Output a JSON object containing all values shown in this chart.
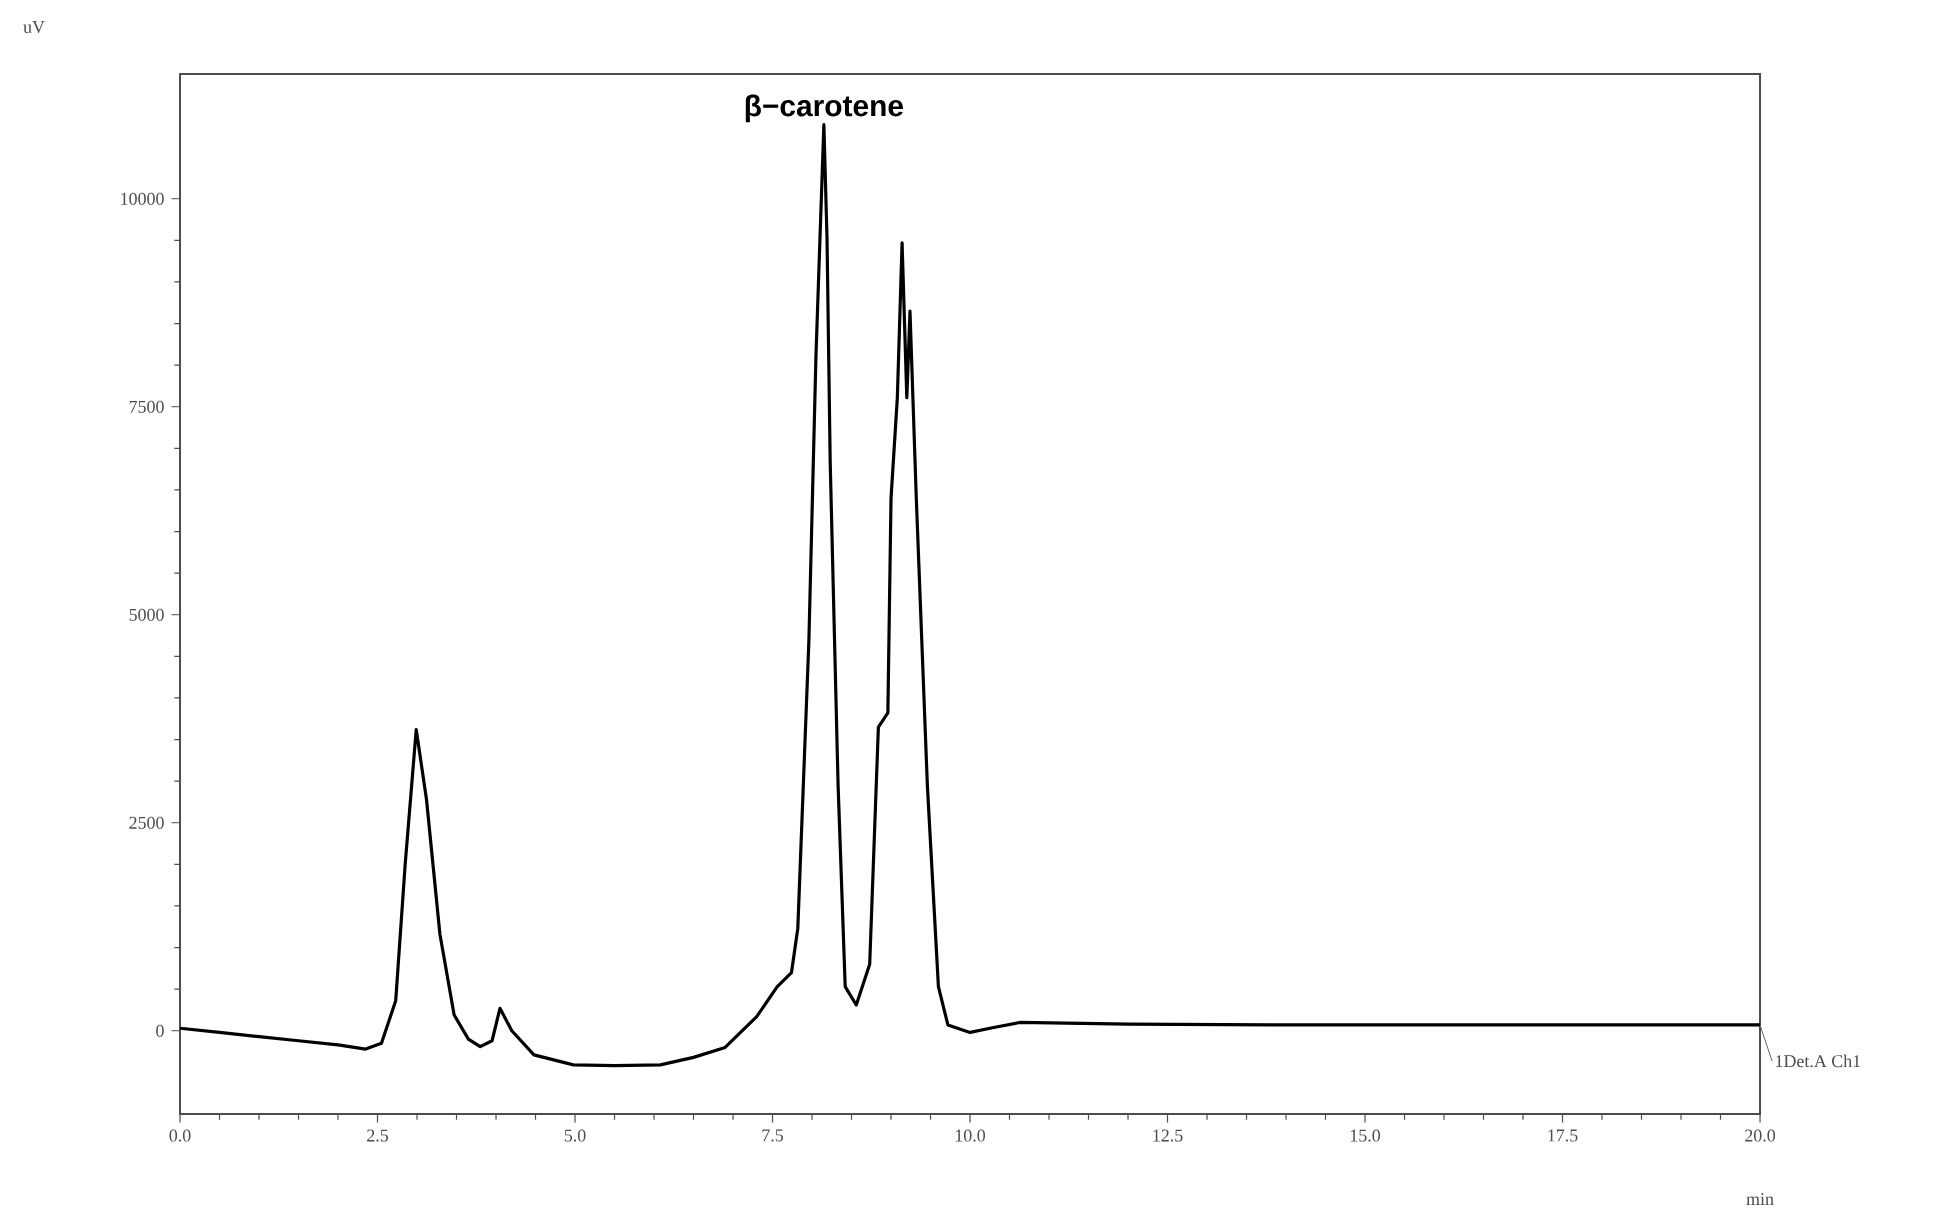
{
  "chart_data": {
    "type": "line",
    "xlabel": "min",
    "ylabel": "uV",
    "xlim": [
      0,
      20
    ],
    "ylim": [
      -1000,
      11500
    ],
    "xticks": [
      {
        "value": 0,
        "label": "0.0"
      },
      {
        "value": 2.5,
        "label": "2.5"
      },
      {
        "value": 5,
        "label": "5.0"
      },
      {
        "value": 7.5,
        "label": "7.5"
      },
      {
        "value": 10,
        "label": "10.0"
      },
      {
        "value": 12.5,
        "label": "12.5"
      },
      {
        "value": 15,
        "label": "15.0"
      },
      {
        "value": 17.5,
        "label": "17.5"
      },
      {
        "value": 20,
        "label": "20.0"
      }
    ],
    "yticks": [
      0,
      2500,
      5000,
      7500,
      10000
    ],
    "grid": false,
    "legend": false,
    "marker": "none",
    "line_style": "solid",
    "annotations": [
      {
        "text": "β−carotene",
        "x": 8.15,
        "y": 10890
      }
    ],
    "series": [
      {
        "name": "1Det.A Ch1",
        "color": "#000000",
        "x": [
          0,
          0.5,
          1.0,
          1.5,
          2.0,
          2.35,
          2.55,
          2.73,
          2.85,
          2.99,
          3.12,
          3.29,
          3.47,
          3.65,
          3.8,
          3.95,
          4.05,
          4.2,
          4.48,
          4.98,
          5.5,
          6.08,
          6.5,
          6.9,
          7.3,
          7.56,
          7.74,
          7.82,
          7.96,
          8.05,
          8.15,
          8.19,
          8.23,
          8.33,
          8.42,
          8.56,
          8.73,
          8.84,
          8.96,
          9.0,
          9.08,
          9.14,
          9.2,
          9.24,
          9.32,
          9.46,
          9.6,
          9.72,
          10.0,
          10.3,
          10.63,
          12.0,
          14.0,
          16.0,
          18.0,
          20.0
        ],
        "values": [
          30,
          -20,
          -70,
          -120,
          -170,
          -220,
          -150,
          360,
          2000,
          3620,
          2780,
          1160,
          190,
          -100,
          -190,
          -120,
          270,
          0,
          -290,
          -410,
          -420,
          -410,
          -320,
          -200,
          170,
          530,
          700,
          1230,
          4680,
          8120,
          10890,
          9520,
          6840,
          2950,
          530,
          310,
          800,
          3650,
          3820,
          6400,
          7610,
          9470,
          7610,
          8650,
          6400,
          2950,
          530,
          70,
          -20,
          40,
          100,
          80,
          70,
          70,
          70,
          70
        ]
      }
    ]
  }
}
